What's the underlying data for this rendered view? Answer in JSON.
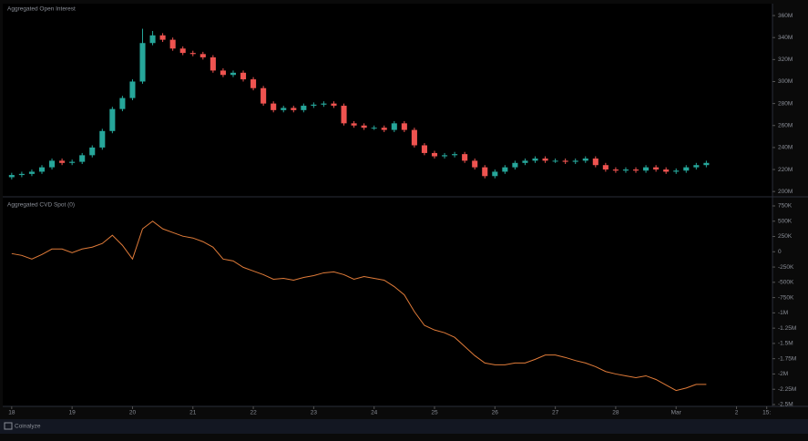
{
  "chart_data": [
    {
      "type": "candlestick",
      "title": "Aggregated Open Interest",
      "categories": [
        null,
        null,
        null,
        null,
        null,
        null,
        null,
        null,
        null,
        null,
        null,
        null,
        null,
        null,
        null,
        null,
        null,
        null,
        null,
        null,
        null,
        null,
        null,
        null,
        null,
        null,
        null,
        null,
        null,
        null,
        null,
        null,
        null,
        null,
        null,
        null,
        null,
        null,
        null,
        null,
        null,
        null,
        null,
        null,
        null,
        null,
        null,
        null,
        null,
        null,
        null,
        null,
        null,
        null,
        null,
        null,
        null,
        null,
        null,
        null,
        null,
        null,
        null,
        null,
        null,
        null,
        null,
        null,
        null,
        null
      ],
      "open": [
        213,
        215,
        216,
        218,
        222,
        228,
        226,
        227,
        233,
        240,
        255,
        275,
        285,
        300,
        335,
        342,
        338,
        330,
        326,
        325,
        322,
        310,
        306,
        308,
        302,
        294,
        280,
        274,
        276,
        274,
        278,
        279,
        280,
        278,
        262,
        260,
        258,
        258,
        256,
        262,
        256,
        242,
        235,
        232,
        233,
        234,
        228,
        222,
        214,
        218,
        222,
        226,
        228,
        230,
        228,
        228,
        227,
        228,
        230,
        224,
        220,
        219,
        220,
        219,
        222,
        220,
        218,
        219,
        222,
        224
      ],
      "high": [
        217,
        218,
        220,
        224,
        230,
        230,
        229,
        235,
        242,
        257,
        277,
        287,
        302,
        348,
        346,
        344,
        340,
        332,
        328,
        327,
        324,
        312,
        310,
        310,
        304,
        296,
        282,
        278,
        278,
        280,
        281,
        282,
        282,
        280,
        264,
        262,
        260,
        260,
        264,
        264,
        258,
        244,
        237,
        235,
        236,
        236,
        230,
        224,
        220,
        224,
        228,
        230,
        232,
        232,
        230,
        230,
        230,
        232,
        232,
        226,
        222,
        222,
        222,
        224,
        224,
        222,
        221,
        224,
        226,
        228
      ],
      "low": [
        211,
        213,
        214,
        216,
        220,
        224,
        224,
        225,
        231,
        238,
        253,
        273,
        283,
        298,
        333,
        336,
        328,
        324,
        323,
        320,
        308,
        304,
        304,
        300,
        292,
        278,
        272,
        272,
        272,
        272,
        276,
        277,
        276,
        260,
        258,
        256,
        256,
        254,
        254,
        254,
        240,
        233,
        230,
        230,
        231,
        226,
        220,
        212,
        212,
        216,
        220,
        224,
        226,
        226,
        226,
        225,
        225,
        226,
        222,
        218,
        217,
        217,
        217,
        217,
        218,
        216,
        216,
        217,
        220,
        222
      ],
      "close": [
        215,
        216,
        218,
        222,
        228,
        226,
        227,
        233,
        240,
        255,
        275,
        285,
        300,
        335,
        342,
        338,
        330,
        326,
        325,
        322,
        310,
        306,
        308,
        302,
        294,
        280,
        274,
        276,
        274,
        278,
        279,
        280,
        278,
        262,
        260,
        258,
        258,
        256,
        262,
        256,
        242,
        235,
        232,
        233,
        234,
        228,
        222,
        214,
        218,
        222,
        226,
        228,
        230,
        228,
        228,
        227,
        228,
        230,
        224,
        220,
        219,
        220,
        219,
        222,
        220,
        218,
        219,
        222,
        224,
        226
      ],
      "up_color": "#26a69a",
      "down_color": "#ef5350",
      "xlim": [
        -0.8,
        75.3
      ],
      "ylim": [
        196,
        370
      ],
      "yticks": [
        {
          "value": 360,
          "label": "360M"
        },
        {
          "value": 340,
          "label": "340M"
        },
        {
          "value": 320,
          "label": "320M"
        },
        {
          "value": 300,
          "label": "300M"
        },
        {
          "value": 280,
          "label": "280M"
        },
        {
          "value": 260,
          "label": "260M"
        },
        {
          "value": 240,
          "label": "240M"
        },
        {
          "value": 220,
          "label": "220M"
        },
        {
          "value": 200,
          "label": "200M"
        }
      ]
    },
    {
      "type": "line",
      "title": "Aggregated CVD Spot (0)",
      "categories": [
        null,
        null,
        null,
        null,
        null,
        null,
        null,
        null,
        null,
        null,
        null,
        null,
        null,
        null,
        null,
        null,
        null,
        null,
        null,
        null,
        null,
        null,
        null,
        null,
        null,
        null,
        null,
        null,
        null,
        null,
        null,
        null,
        null,
        null,
        null,
        null,
        null,
        null,
        null,
        null,
        null,
        null,
        null,
        null,
        null,
        null,
        null,
        null,
        null,
        null,
        null,
        null,
        null,
        null,
        null,
        null,
        null,
        null,
        null,
        null,
        null,
        null,
        null,
        null,
        null,
        null,
        null,
        null,
        null,
        null
      ],
      "series": [
        {
          "color": "#e07b39",
          "values": [
            -30,
            -60,
            -120,
            -45,
            45,
            45,
            -15,
            45,
            75,
            135,
            270,
            105,
            -120,
            375,
            500,
            375,
            315,
            255,
            225,
            165,
            75,
            -120,
            -150,
            -255,
            -315,
            -375,
            -450,
            -435,
            -465,
            -420,
            -390,
            -345,
            -330,
            -375,
            -450,
            -405,
            -435,
            -465,
            -570,
            -705,
            -980,
            -1205,
            -1280,
            -1325,
            -1400,
            -1550,
            -1700,
            -1820,
            -1850,
            -1850,
            -1820,
            -1820,
            -1760,
            -1690,
            -1690,
            -1730,
            -1780,
            -1820,
            -1880,
            -1960,
            -2000,
            -2030,
            -2060,
            -2030,
            -2090,
            -2180,
            -2270,
            -2230,
            -2170,
            -2170
          ]
        }
      ],
      "xlim": [
        -0.8,
        75.3
      ],
      "ylim": [
        -2545,
        884
      ],
      "yticks": [
        {
          "value": 750,
          "label": "750K"
        },
        {
          "value": 500,
          "label": "500K"
        },
        {
          "value": 250,
          "label": "250K"
        },
        0,
        {
          "value": -250,
          "label": "-250K"
        },
        {
          "value": -500,
          "label": "-500K"
        },
        {
          "value": -750,
          "label": "-750K"
        },
        {
          "value": -1000,
          "label": "-1M"
        },
        {
          "value": -1250,
          "label": "-1.25M"
        },
        {
          "value": -1500,
          "label": "-1.5M"
        },
        {
          "value": -1750,
          "label": "-1.75M"
        },
        {
          "value": -2000,
          "label": "-2M"
        },
        {
          "value": -2250,
          "label": "-2.25M"
        },
        {
          "value": -2500,
          "label": "-2.5M"
        }
      ],
      "xticks": [
        {
          "value": 0,
          "label": "18"
        },
        {
          "value": 6,
          "label": "19"
        },
        {
          "value": 12,
          "label": "20"
        },
        {
          "value": 18,
          "label": "21"
        },
        {
          "value": 24,
          "label": "22"
        },
        {
          "value": 30,
          "label": "23"
        },
        {
          "value": 36,
          "label": "24"
        },
        {
          "value": 42,
          "label": "25"
        },
        {
          "value": 48,
          "label": "26"
        },
        {
          "value": 54,
          "label": "27"
        },
        {
          "value": 60,
          "label": "28"
        },
        {
          "value": 66,
          "label": "Mar"
        },
        {
          "value": 72,
          "label": "2"
        },
        {
          "value": 75,
          "label": "15:"
        }
      ]
    }
  ],
  "footer": {
    "brand": "Coinalyze"
  }
}
